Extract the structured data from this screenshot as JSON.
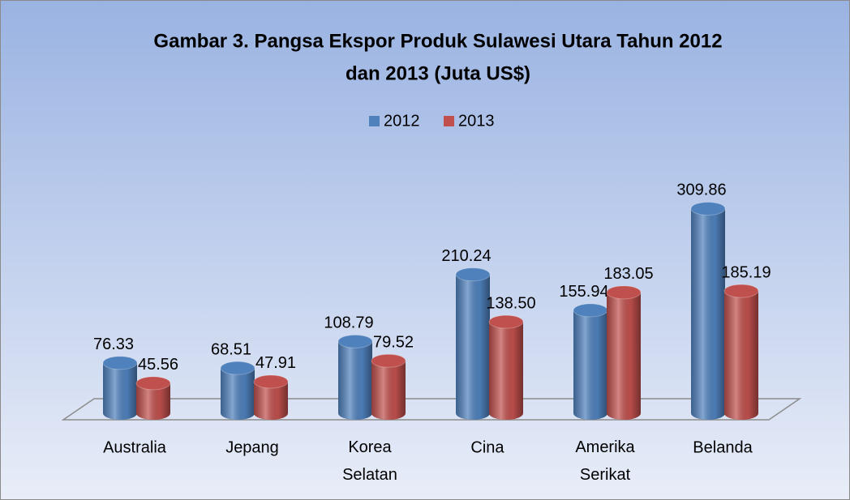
{
  "chart_data": {
    "type": "bar3d",
    "title": "Gambar 3. Pangsa Ekspor Produk Sulawesi Utara Tahun 2012",
    "subtitle": "dan 2013 (Juta US$)",
    "categories": [
      "Australia",
      "Jepang",
      "Korea Selatan",
      "Cina",
      "Amerika Serikat",
      "Belanda"
    ],
    "series": [
      {
        "name": "2012",
        "color": "#4f81bd",
        "values": [
          76.33,
          68.51,
          108.79,
          210.24,
          155.94,
          309.86
        ],
        "value_labels": [
          "76.33",
          "68.51",
          "108.79",
          "210.24",
          "155.94",
          "309.86"
        ]
      },
      {
        "name": "2013",
        "color": "#c0504d",
        "values": [
          45.56,
          47.91,
          79.52,
          138.5,
          183.05,
          185.19
        ],
        "value_labels": [
          "45.56",
          "47.91",
          "79.52",
          "138.50",
          "183.05",
          "185.19"
        ]
      }
    ],
    "legend": "top"
  }
}
